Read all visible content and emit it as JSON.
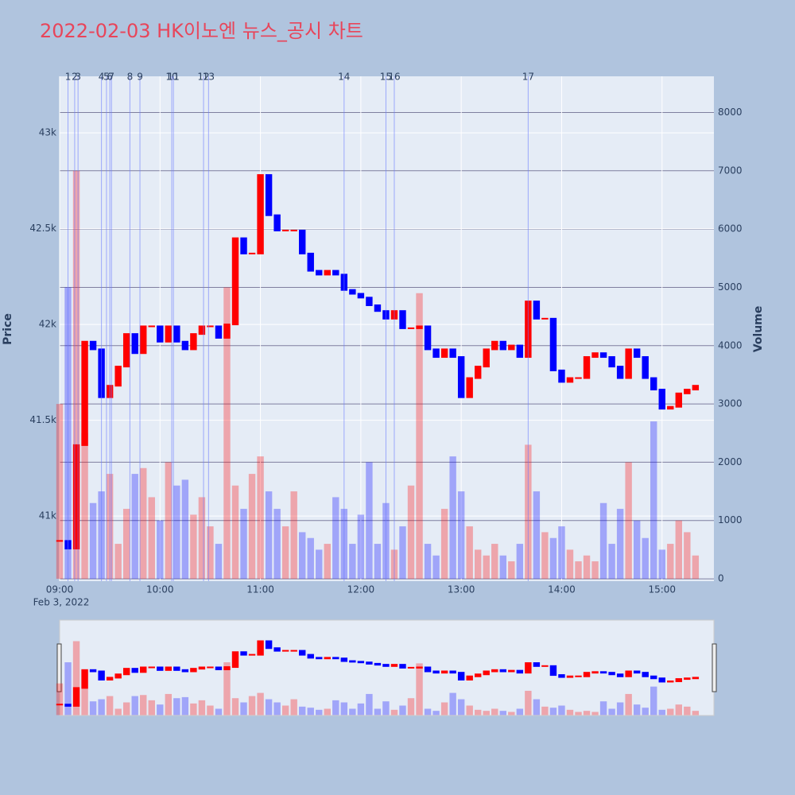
{
  "chart_data": {
    "type": "candlestick",
    "title": "2022-02-03 HK이노엔 뉴스_공시 차트",
    "x": [
      "09:00",
      "09:05",
      "09:10",
      "09:15",
      "09:20",
      "09:25",
      "09:30",
      "09:35",
      "09:40",
      "09:45",
      "09:50",
      "09:55",
      "10:00",
      "10:05",
      "10:10",
      "10:15",
      "10:20",
      "10:25",
      "10:30",
      "10:35",
      "10:40",
      "10:45",
      "10:50",
      "10:55",
      "11:00",
      "11:05",
      "11:10",
      "11:15",
      "11:20",
      "11:25",
      "11:30",
      "11:35",
      "11:40",
      "11:45",
      "11:50",
      "11:55",
      "12:00",
      "12:05",
      "12:10",
      "12:15",
      "12:20",
      "12:25",
      "12:30",
      "12:35",
      "12:40",
      "12:45",
      "12:50",
      "12:55",
      "13:00",
      "13:05",
      "13:10",
      "13:15",
      "13:20",
      "13:25",
      "13:30",
      "13:35",
      "13:40",
      "13:45",
      "13:50",
      "13:55",
      "14:00",
      "14:05",
      "14:10",
      "14:15",
      "14:20",
      "14:25",
      "14:30",
      "14:35",
      "14:40",
      "14:45",
      "14:50",
      "14:55",
      "15:00",
      "15:05",
      "15:10",
      "15:15",
      "15:20"
    ],
    "price": {
      "values": [
        40870,
        40830,
        41370,
        41910,
        41870,
        41620,
        41680,
        41780,
        41950,
        41850,
        41990,
        41990,
        41910,
        41990,
        41910,
        41870,
        41950,
        41990,
        41990,
        41930,
        42000,
        42450,
        42370,
        42370,
        42780,
        42570,
        42490,
        42490,
        42490,
        42370,
        42280,
        42260,
        42280,
        42260,
        42180,
        42160,
        42140,
        42100,
        42070,
        42030,
        42070,
        41980,
        41980,
        41990,
        41870,
        41830,
        41870,
        41830,
        41620,
        41720,
        41780,
        41870,
        41910,
        41870,
        41890,
        41830,
        42120,
        42030,
        42030,
        41760,
        41700,
        41720,
        41720,
        41830,
        41850,
        41830,
        41780,
        41720,
        41870,
        41830,
        41720,
        41660,
        41560,
        41570,
        41640,
        41660,
        41680
      ]
    },
    "volume": {
      "axis": "y2",
      "values": [
        3000,
        5000,
        7000,
        2500,
        1300,
        1500,
        1800,
        600,
        1200,
        1800,
        1900,
        1400,
        1000,
        2000,
        1600,
        1700,
        1100,
        1400,
        900,
        600,
        5000,
        1600,
        1200,
        1800,
        2100,
        1500,
        1200,
        900,
        1500,
        800,
        700,
        500,
        600,
        1400,
        1200,
        600,
        1100,
        2000,
        600,
        1300,
        500,
        900,
        1600,
        4900,
        600,
        400,
        1200,
        2100,
        1500,
        900,
        500,
        400,
        600,
        400,
        300,
        600,
        2300,
        1500,
        800,
        700,
        900,
        500,
        300,
        400,
        300,
        1300,
        600,
        1200,
        2000,
        1000,
        700,
        2700,
        500,
        600,
        1000,
        800,
        400
      ]
    },
    "up_color": "#ff0000",
    "down_color": "#0000ff",
    "news_color": "#6b7bff",
    "xlim": [
      "09:00",
      "15:31"
    ],
    "xticks": [
      "09:00",
      "10:00",
      "11:00",
      "12:00",
      "13:00",
      "14:00",
      "15:00"
    ],
    "date_label": "Feb 3, 2022",
    "ylim": [
      40660,
      43295
    ],
    "yticks": [
      {
        "value": 41000,
        "label": "41k"
      },
      {
        "value": 41500,
        "label": "41.5k"
      },
      {
        "value": 42000,
        "label": "42k"
      },
      {
        "value": 42500,
        "label": "42.5k"
      },
      {
        "value": 43000,
        "label": "43k"
      }
    ],
    "y2lim": [
      -40,
      8620
    ],
    "y2ticks": [
      0,
      1000,
      2000,
      3000,
      4000,
      5000,
      6000,
      7000,
      8000
    ],
    "y_label": "Price",
    "y2_label": "Volume",
    "news": [
      {
        "label": "1",
        "time": "09:05"
      },
      {
        "label": "2",
        "time": "09:09"
      },
      {
        "label": "3",
        "time": "09:11"
      },
      {
        "label": "4",
        "time": "09:25"
      },
      {
        "label": "5",
        "time": "09:28"
      },
      {
        "label": "6",
        "time": "09:30"
      },
      {
        "label": "7",
        "time": "09:31"
      },
      {
        "label": "8",
        "time": "09:42"
      },
      {
        "label": "9",
        "time": "09:48"
      },
      {
        "label": "10",
        "time": "10:07"
      },
      {
        "label": "11",
        "time": "10:08"
      },
      {
        "label": "12",
        "time": "10:26"
      },
      {
        "label": "13",
        "time": "10:29"
      },
      {
        "label": "14",
        "time": "11:50"
      },
      {
        "label": "15",
        "time": "12:15"
      },
      {
        "label": "16",
        "time": "12:20"
      },
      {
        "label": "17",
        "time": "13:40"
      }
    ]
  }
}
